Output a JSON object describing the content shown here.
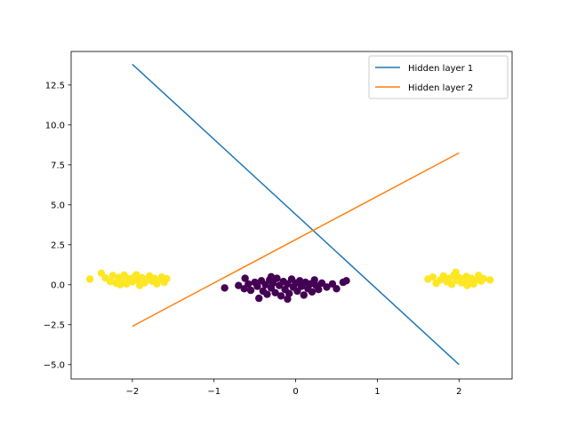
{
  "chart_data": {
    "type": "line+scatter",
    "title": "",
    "xlabel": "",
    "ylabel": "",
    "xlim": [
      -2.75,
      2.65
    ],
    "ylim": [
      -5.9,
      14.6
    ],
    "x_ticks": [
      -2,
      -1,
      0,
      1,
      2
    ],
    "y_ticks": [
      -5.0,
      -2.5,
      0.0,
      2.5,
      5.0,
      7.5,
      10.0,
      12.5
    ],
    "x_tick_labels": [
      "−2",
      "−1",
      "0",
      "1",
      "2"
    ],
    "y_tick_labels": [
      "−5.0",
      "−2.5",
      "0.0",
      "2.5",
      "5.0",
      "7.5",
      "10.0",
      "12.5"
    ],
    "legend_position": "top-right",
    "series": [
      {
        "name": "Hidden layer 1",
        "kind": "line",
        "color": "#1f77b4",
        "x": [
          -2,
          2
        ],
        "y": [
          13.8,
          -5.0
        ]
      },
      {
        "name": "Hidden layer 2",
        "kind": "line",
        "color": "#ff7f0e",
        "x": [
          -2,
          2
        ],
        "y": [
          -2.6,
          8.25
        ]
      }
    ],
    "scatter": {
      "colors": {
        "class_0": "#440154",
        "class_1": "#fde725"
      },
      "points": [
        {
          "x": -2.52,
          "y": 0.35,
          "class": "class_1"
        },
        {
          "x": -2.38,
          "y": 0.72,
          "class": "class_1"
        },
        {
          "x": -2.33,
          "y": 0.42,
          "class": "class_1"
        },
        {
          "x": -2.27,
          "y": 0.2,
          "class": "class_1"
        },
        {
          "x": -2.24,
          "y": 0.58,
          "class": "class_1"
        },
        {
          "x": -2.2,
          "y": 0.1,
          "class": "class_1"
        },
        {
          "x": -2.17,
          "y": 0.45,
          "class": "class_1"
        },
        {
          "x": -2.13,
          "y": 0.28,
          "class": "class_1"
        },
        {
          "x": -2.1,
          "y": 0.6,
          "class": "class_1"
        },
        {
          "x": -2.07,
          "y": 0.05,
          "class": "class_1"
        },
        {
          "x": -2.04,
          "y": 0.38,
          "class": "class_1"
        },
        {
          "x": -2.0,
          "y": 0.18,
          "class": "class_1"
        },
        {
          "x": -1.97,
          "y": 0.52,
          "class": "class_1"
        },
        {
          "x": -1.94,
          "y": 0.3,
          "class": "class_1"
        },
        {
          "x": -1.91,
          "y": -0.05,
          "class": "class_1"
        },
        {
          "x": -1.88,
          "y": 0.44,
          "class": "class_1"
        },
        {
          "x": -1.85,
          "y": 0.12,
          "class": "class_1"
        },
        {
          "x": -1.82,
          "y": 0.35,
          "class": "class_1"
        },
        {
          "x": -1.79,
          "y": 0.55,
          "class": "class_1"
        },
        {
          "x": -1.76,
          "y": 0.22,
          "class": "class_1"
        },
        {
          "x": -1.73,
          "y": 0.4,
          "class": "class_1"
        },
        {
          "x": -1.7,
          "y": 0.05,
          "class": "class_1"
        },
        {
          "x": -1.67,
          "y": 0.3,
          "class": "class_1"
        },
        {
          "x": -1.64,
          "y": 0.48,
          "class": "class_1"
        },
        {
          "x": -1.61,
          "y": 0.15,
          "class": "class_1"
        },
        {
          "x": -1.58,
          "y": 0.38,
          "class": "class_1"
        },
        {
          "x": -2.15,
          "y": 0.0,
          "class": "class_1"
        },
        {
          "x": -1.95,
          "y": 0.62,
          "class": "class_1"
        },
        {
          "x": 1.62,
          "y": 0.35,
          "class": "class_1"
        },
        {
          "x": 1.68,
          "y": 0.48,
          "class": "class_1"
        },
        {
          "x": 1.72,
          "y": 0.08,
          "class": "class_1"
        },
        {
          "x": 1.77,
          "y": 0.3,
          "class": "class_1"
        },
        {
          "x": 1.81,
          "y": 0.55,
          "class": "class_1"
        },
        {
          "x": 1.85,
          "y": 0.18,
          "class": "class_1"
        },
        {
          "x": 1.88,
          "y": 0.4,
          "class": "class_1"
        },
        {
          "x": 1.91,
          "y": 0.02,
          "class": "class_1"
        },
        {
          "x": 1.94,
          "y": 0.62,
          "class": "class_1"
        },
        {
          "x": 1.97,
          "y": 0.28,
          "class": "class_1"
        },
        {
          "x": 2.0,
          "y": 0.45,
          "class": "class_1"
        },
        {
          "x": 2.03,
          "y": 0.12,
          "class": "class_1"
        },
        {
          "x": 2.06,
          "y": 0.35,
          "class": "class_1"
        },
        {
          "x": 2.09,
          "y": 0.52,
          "class": "class_1"
        },
        {
          "x": 2.12,
          "y": 0.2,
          "class": "class_1"
        },
        {
          "x": 2.15,
          "y": 0.4,
          "class": "class_1"
        },
        {
          "x": 2.18,
          "y": 0.05,
          "class": "class_1"
        },
        {
          "x": 2.21,
          "y": 0.3,
          "class": "class_1"
        },
        {
          "x": 2.24,
          "y": 0.58,
          "class": "class_1"
        },
        {
          "x": 2.27,
          "y": 0.22,
          "class": "class_1"
        },
        {
          "x": 2.3,
          "y": 0.38,
          "class": "class_1"
        },
        {
          "x": 2.38,
          "y": 0.3,
          "class": "class_1"
        },
        {
          "x": 1.96,
          "y": 0.78,
          "class": "class_1"
        },
        {
          "x": 2.1,
          "y": -0.05,
          "class": "class_1"
        },
        {
          "x": -0.87,
          "y": -0.2,
          "class": "class_0"
        },
        {
          "x": -0.7,
          "y": -0.05,
          "class": "class_0"
        },
        {
          "x": -0.63,
          "y": -0.25,
          "class": "class_0"
        },
        {
          "x": -0.62,
          "y": 0.4,
          "class": "class_0"
        },
        {
          "x": -0.58,
          "y": 0.05,
          "class": "class_0"
        },
        {
          "x": -0.55,
          "y": -0.35,
          "class": "class_0"
        },
        {
          "x": -0.5,
          "y": 0.15,
          "class": "class_0"
        },
        {
          "x": -0.47,
          "y": -0.1,
          "class": "class_0"
        },
        {
          "x": -0.45,
          "y": -0.85,
          "class": "class_0"
        },
        {
          "x": -0.42,
          "y": 0.25,
          "class": "class_0"
        },
        {
          "x": -0.4,
          "y": -0.4,
          "class": "class_0"
        },
        {
          "x": -0.37,
          "y": 0.0,
          "class": "class_0"
        },
        {
          "x": -0.35,
          "y": -0.6,
          "class": "class_0"
        },
        {
          "x": -0.32,
          "y": 0.3,
          "class": "class_0"
        },
        {
          "x": -0.3,
          "y": -0.2,
          "class": "class_0"
        },
        {
          "x": -0.28,
          "y": 0.1,
          "class": "class_0"
        },
        {
          "x": -0.25,
          "y": -0.5,
          "class": "class_0"
        },
        {
          "x": -0.23,
          "y": 0.4,
          "class": "class_0"
        },
        {
          "x": -0.2,
          "y": -0.05,
          "class": "class_0"
        },
        {
          "x": -0.18,
          "y": -0.7,
          "class": "class_0"
        },
        {
          "x": -0.15,
          "y": 0.2,
          "class": "class_0"
        },
        {
          "x": -0.13,
          "y": -0.3,
          "class": "class_0"
        },
        {
          "x": -0.1,
          "y": 0.05,
          "class": "class_0"
        },
        {
          "x": -0.08,
          "y": -0.55,
          "class": "class_0"
        },
        {
          "x": -0.05,
          "y": 0.35,
          "class": "class_0"
        },
        {
          "x": -0.03,
          "y": -0.15,
          "class": "class_0"
        },
        {
          "x": 0.0,
          "y": 0.1,
          "class": "class_0"
        },
        {
          "x": 0.02,
          "y": -0.4,
          "class": "class_0"
        },
        {
          "x": 0.05,
          "y": 0.25,
          "class": "class_0"
        },
        {
          "x": 0.07,
          "y": -0.1,
          "class": "class_0"
        },
        {
          "x": 0.1,
          "y": -0.65,
          "class": "class_0"
        },
        {
          "x": 0.12,
          "y": 0.15,
          "class": "class_0"
        },
        {
          "x": 0.15,
          "y": -0.25,
          "class": "class_0"
        },
        {
          "x": 0.18,
          "y": 0.05,
          "class": "class_0"
        },
        {
          "x": 0.2,
          "y": -0.45,
          "class": "class_0"
        },
        {
          "x": 0.23,
          "y": 0.3,
          "class": "class_0"
        },
        {
          "x": 0.25,
          "y": -0.05,
          "class": "class_0"
        },
        {
          "x": 0.28,
          "y": -0.3,
          "class": "class_0"
        },
        {
          "x": 0.32,
          "y": 0.1,
          "class": "class_0"
        },
        {
          "x": 0.38,
          "y": -0.15,
          "class": "class_0"
        },
        {
          "x": 0.45,
          "y": 0.05,
          "class": "class_0"
        },
        {
          "x": 0.5,
          "y": -0.25,
          "class": "class_0"
        },
        {
          "x": 0.58,
          "y": 0.15,
          "class": "class_0"
        },
        {
          "x": 0.62,
          "y": 0.25,
          "class": "class_0"
        },
        {
          "x": -0.1,
          "y": -0.9,
          "class": "class_0"
        },
        {
          "x": -0.3,
          "y": 0.5,
          "class": "class_0"
        }
      ]
    }
  }
}
